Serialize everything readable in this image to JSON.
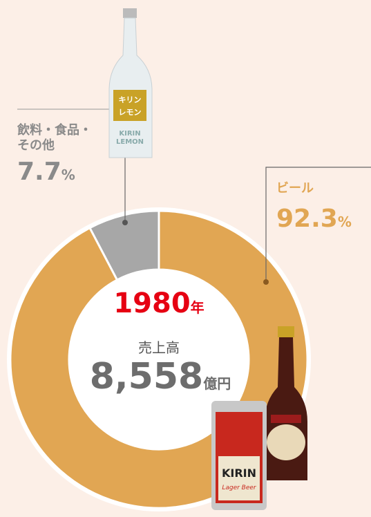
{
  "chart_data": {
    "type": "pie",
    "donut": true,
    "categories": [
      "ビール",
      "飲料・食品・その他"
    ],
    "values": [
      92.3,
      7.7
    ],
    "colors": [
      "#e1a653",
      "#a7a7a7"
    ],
    "unit": "%",
    "center": {
      "year": "1980",
      "year_unit": "年",
      "label": "売上高",
      "amount": "8,558",
      "amount_unit": "億円"
    }
  }
}
